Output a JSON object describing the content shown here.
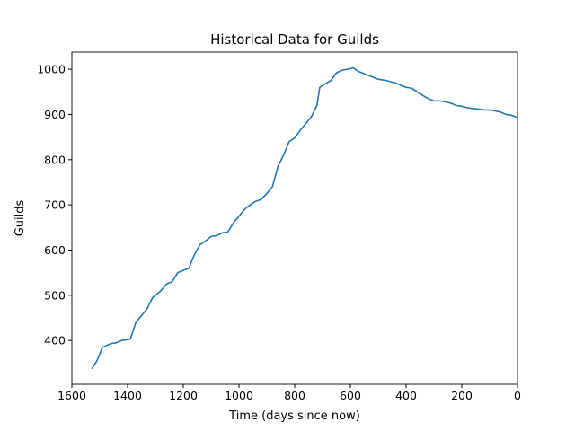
{
  "chart_data": {
    "type": "line",
    "title": "Historical Data for Guilds",
    "x_label": "Time (days since now)",
    "y_label": "Guilds",
    "x": [
      1528,
      1510,
      1490,
      1460,
      1440,
      1420,
      1390,
      1370,
      1350,
      1330,
      1310,
      1280,
      1260,
      1240,
      1220,
      1200,
      1180,
      1160,
      1140,
      1120,
      1100,
      1080,
      1060,
      1040,
      1020,
      1000,
      980,
      960,
      940,
      920,
      900,
      880,
      860,
      840,
      820,
      800,
      780,
      760,
      740,
      720,
      710,
      690,
      670,
      650,
      630,
      610,
      590,
      570,
      550,
      530,
      500,
      470,
      440,
      420,
      400,
      380,
      360,
      340,
      320,
      300,
      280,
      260,
      240,
      220,
      200,
      180,
      160,
      140,
      120,
      100,
      80,
      60,
      40,
      20,
      0
    ],
    "values": [
      337,
      355,
      385,
      393,
      395,
      400,
      403,
      440,
      455,
      470,
      495,
      510,
      525,
      530,
      550,
      555,
      560,
      590,
      612,
      620,
      630,
      632,
      638,
      640,
      660,
      675,
      690,
      700,
      708,
      712,
      725,
      740,
      785,
      810,
      840,
      848,
      865,
      880,
      895,
      920,
      960,
      968,
      975,
      992,
      998,
      1000,
      1003,
      995,
      990,
      985,
      978,
      975,
      970,
      965,
      960,
      958,
      950,
      942,
      935,
      930,
      930,
      928,
      925,
      920,
      918,
      915,
      913,
      912,
      910,
      910,
      908,
      905,
      900,
      898,
      893
    ],
    "color": "#1f77b4",
    "xlim": [
      1600,
      0
    ],
    "xticks": [
      1600,
      1400,
      1200,
      1000,
      800,
      600,
      400,
      200,
      0
    ],
    "ylim": [
      303,
      1038
    ],
    "yticks": [
      400,
      500,
      600,
      700,
      800,
      900,
      1000
    ]
  }
}
